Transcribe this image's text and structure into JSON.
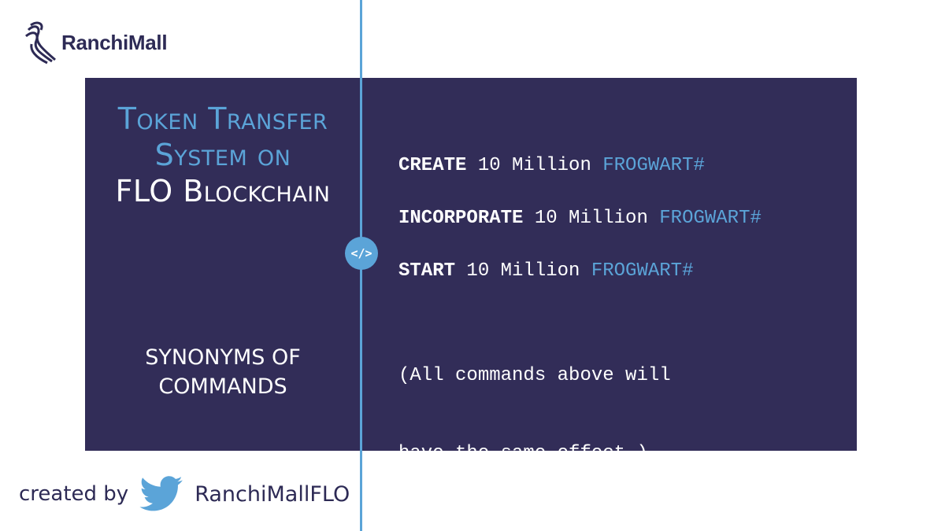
{
  "brand": {
    "name": "RanchiMall",
    "icon": "ranchimall-logo-icon"
  },
  "title": {
    "line1": "Token Transfer",
    "line2": "System on",
    "line3": "FLO Blockchain"
  },
  "subtitle": {
    "line1": "SYNONYMS OF",
    "line2": "COMMANDS"
  },
  "badge": {
    "icon": "code-icon",
    "label": "</>"
  },
  "commands": [
    {
      "keyword": "CREATE",
      "amount": " 10 Million ",
      "token": "FROGWART#"
    },
    {
      "keyword": "INCORPORATE",
      "amount": " 10 Million ",
      "token": "FROGWART#"
    },
    {
      "keyword": "START",
      "amount": " 10 Million ",
      "token": "FROGWART#"
    }
  ],
  "note": {
    "line1": "(All commands above will",
    "line2": "have the same effect.)"
  },
  "footer": {
    "created_by": "created by",
    "icon": "twitter-icon",
    "handle": "RanchiMallFLO"
  },
  "colors": {
    "panel": "#322d58",
    "accent": "#5ba4d8",
    "brand_text": "#2d2a55"
  }
}
